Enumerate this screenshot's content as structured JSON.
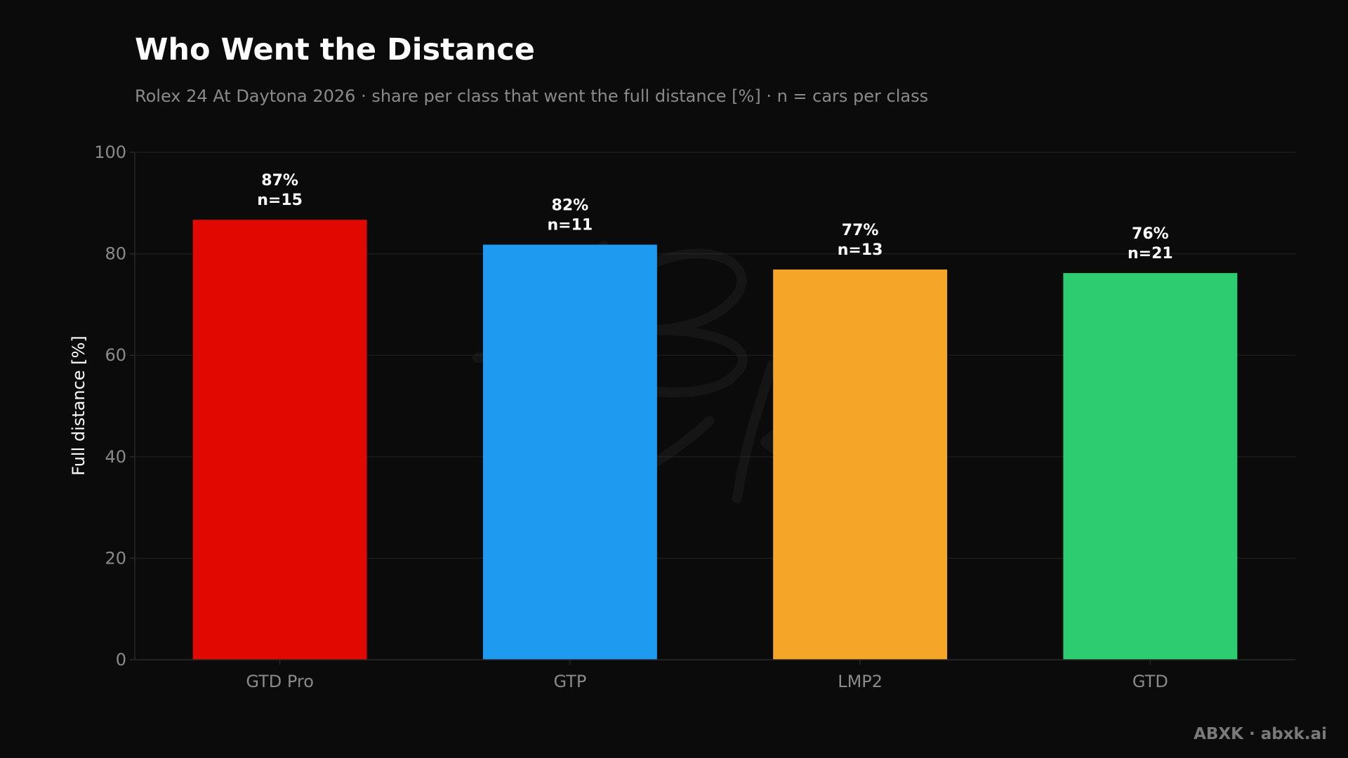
{
  "chart_data": {
    "type": "bar",
    "title": "Who Went the Distance",
    "subtitle": "Rolex 24 At Daytona 2026 · share per class that went the full distance [%] · n = cars per class",
    "xlabel": "",
    "ylabel": "Full distance [%]",
    "ylim": [
      0,
      100
    ],
    "yticks": [
      0,
      20,
      40,
      60,
      80,
      100
    ],
    "ytick_labels": [
      "0",
      "20",
      "40",
      "60",
      "80",
      "100"
    ],
    "grid": true,
    "categories": [
      "GTD Pro",
      "GTP",
      "LMP2",
      "GTD"
    ],
    "values": [
      86.7,
      81.8,
      76.9,
      76.2
    ],
    "value_labels": [
      "87%",
      "82%",
      "77%",
      "76%"
    ],
    "n_labels": [
      "n=15",
      "n=11",
      "n=13",
      "n=21"
    ],
    "n": [
      15,
      11,
      13,
      21
    ],
    "colors": [
      "#e00800",
      "#1e9af0",
      "#f5a626",
      "#2ecc71"
    ]
  },
  "footer": {
    "credit": "ABXK · abxk.ai"
  },
  "watermark": {
    "icon": "abxk-signature-watermark"
  }
}
